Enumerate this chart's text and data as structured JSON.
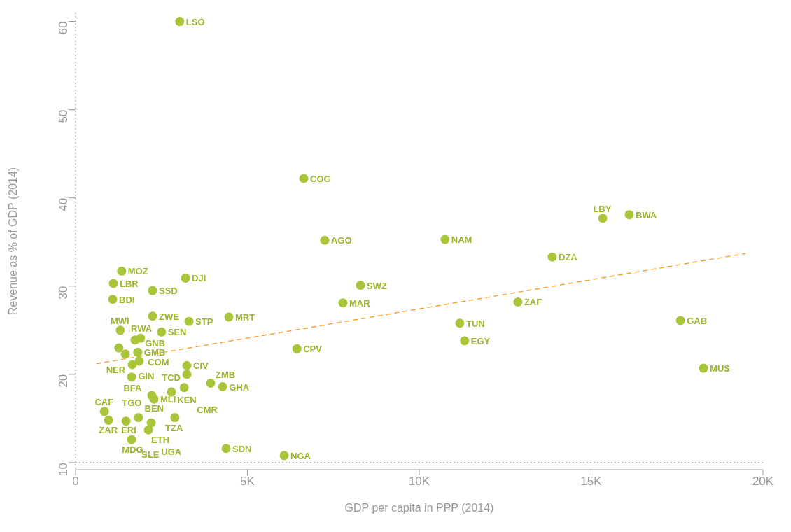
{
  "chart_data": {
    "type": "scatter",
    "xlabel": "GDP per capita in PPP (2014)",
    "ylabel": "Revenue as % of GDP (2014)",
    "xlim": [
      0,
      20000
    ],
    "xticks": [
      0,
      {
        "value": 5000,
        "label": "5K"
      },
      {
        "value": 10000,
        "label": "10K"
      },
      {
        "value": 15000,
        "label": "15K"
      },
      {
        "value": 20000,
        "label": "20K"
      }
    ],
    "ylim": [
      9.2,
      61
    ],
    "yticks": [
      10,
      20,
      30,
      40,
      50,
      60
    ],
    "grid": false,
    "legend": false,
    "marker": "circle",
    "ref_lines": [
      {
        "axis": "y",
        "value": 10,
        "label": null,
        "color": "#888888",
        "line_style": "dotted"
      }
    ],
    "series": [
      {
        "color": "#a9c63a",
        "x": [
          3030,
          6640,
          7250,
          10750,
          15340,
          16110,
          13870,
          8290,
          7780,
          12870,
          11180,
          11320,
          17600,
          18270,
          6440,
          4460,
          6070,
          4380,
          3200,
          1340,
          1100,
          2240,
          1080,
          2240,
          3300,
          1300,
          2500,
          1890,
          1730,
          1260,
          1450,
          1810,
          1850,
          1650,
          1630,
          3240,
          3240,
          3930,
          4280,
          3160,
          2790,
          2220,
          2280,
          840,
          960,
          1470,
          1830,
          2890,
          2200,
          2120,
          1630
        ],
        "values": [
          60,
          42.2,
          35.2,
          35.3,
          37.7,
          38.1,
          33.3,
          30.1,
          28.1,
          28.2,
          25.8,
          23.8,
          26.1,
          20.7,
          22.9,
          26.5,
          10.8,
          11.6,
          30.9,
          31.7,
          30.3,
          29.5,
          28.5,
          26.6,
          26.0,
          25.0,
          24.8,
          24.1,
          23.9,
          23.0,
          22.3,
          22.5,
          21.5,
          21.1,
          19.7,
          21.0,
          20.0,
          19.0,
          18.6,
          18.5,
          18.0,
          17.6,
          17.2,
          15.8,
          14.8,
          14.7,
          15.1,
          15.1,
          14.5,
          13.7,
          12.6
        ]
      },
      {
        "type": "line",
        "color": "#f39a1e",
        "line_style": "dashed",
        "marker": "none",
        "x": [
          600,
          19500
        ],
        "values": [
          21.2,
          33.7
        ]
      }
    ],
    "annotations": [
      {
        "text": "LSO",
        "x": 3030,
        "y": 60
      },
      {
        "text": "COG",
        "x": 6640,
        "y": 42.2
      },
      {
        "text": "AGO",
        "x": 7250,
        "y": 35.2
      },
      {
        "text": "NAM",
        "x": 10750,
        "y": 35.3
      },
      {
        "text": "LBY",
        "x": 15340,
        "y": 37.7
      },
      {
        "text": "BWA",
        "x": 16110,
        "y": 38.1
      },
      {
        "text": "DZA",
        "x": 13870,
        "y": 33.3
      },
      {
        "text": "SWZ",
        "x": 8290,
        "y": 30.1
      },
      {
        "text": "MAR",
        "x": 7780,
        "y": 28.1
      },
      {
        "text": "ZAF",
        "x": 12870,
        "y": 28.2
      },
      {
        "text": "TUN",
        "x": 11180,
        "y": 25.8
      },
      {
        "text": "EGY",
        "x": 11320,
        "y": 23.8
      },
      {
        "text": "GAB",
        "x": 17600,
        "y": 26.1
      },
      {
        "text": "MUS",
        "x": 18270,
        "y": 20.7
      },
      {
        "text": "CPV",
        "x": 6440,
        "y": 22.9
      },
      {
        "text": "MRT",
        "x": 4460,
        "y": 26.5
      },
      {
        "text": "NGA",
        "x": 6070,
        "y": 10.8
      },
      {
        "text": "SDN",
        "x": 4380,
        "y": 11.6
      },
      {
        "text": "DJI",
        "x": 3200,
        "y": 30.9
      },
      {
        "text": "MOZ",
        "x": 1340,
        "y": 31.7
      },
      {
        "text": "LBR",
        "x": 1100,
        "y": 30.3
      },
      {
        "text": "SSD",
        "x": 2240,
        "y": 29.5
      },
      {
        "text": "BDI",
        "x": 1080,
        "y": 28.5
      },
      {
        "text": "ZWE",
        "x": 2240,
        "y": 26.6
      },
      {
        "text": "STP",
        "x": 3300,
        "y": 26.0
      },
      {
        "text": "MWI",
        "x": 1300,
        "y": 25.0
      },
      {
        "text": "SEN",
        "x": 2500,
        "y": 24.8
      },
      {
        "text": "RWA",
        "x": 1890,
        "y": 24.1
      },
      {
        "text": "COM",
        "x": 1730,
        "y": 23.9
      },
      {
        "text": "NER",
        "x": 1260,
        "y": 23.0
      },
      {
        "text": "GIN",
        "x": 1450,
        "y": 22.3
      },
      {
        "text": "GMB",
        "x": 1810,
        "y": 22.5
      },
      {
        "text": "BFA",
        "x": 1850,
        "y": 21.5
      },
      {
        "text": "GNB",
        "x": 1650,
        "y": 21.1
      },
      {
        "text": "TGO",
        "x": 1630,
        "y": 19.7
      },
      {
        "text": "CIV",
        "x": 3240,
        "y": 21.0
      },
      {
        "text": "KEN",
        "x": 3240,
        "y": 20.0
      },
      {
        "text": "ZMB",
        "x": 3930,
        "y": 19.0
      },
      {
        "text": "GHA",
        "x": 4280,
        "y": 18.6
      },
      {
        "text": "CMR",
        "x": 3160,
        "y": 18.5
      },
      {
        "text": "TCD",
        "x": 2790,
        "y": 18.0
      },
      {
        "text": "BEN",
        "x": 2220,
        "y": 17.6
      },
      {
        "text": "MLI",
        "x": 2280,
        "y": 17.2
      },
      {
        "text": "CAF",
        "x": 840,
        "y": 15.8
      },
      {
        "text": "ZAR",
        "x": 960,
        "y": 14.8
      },
      {
        "text": "ERI",
        "x": 1470,
        "y": 14.7
      },
      {
        "text": "ETH",
        "x": 1830,
        "y": 15.1
      },
      {
        "text": "TZA",
        "x": 2890,
        "y": 15.1
      },
      {
        "text": "SLE",
        "x": 2200,
        "y": 14.5
      },
      {
        "text": "UGA",
        "x": 2120,
        "y": 13.7
      },
      {
        "text": "MDG",
        "x": 1630,
        "y": 12.6
      }
    ]
  }
}
